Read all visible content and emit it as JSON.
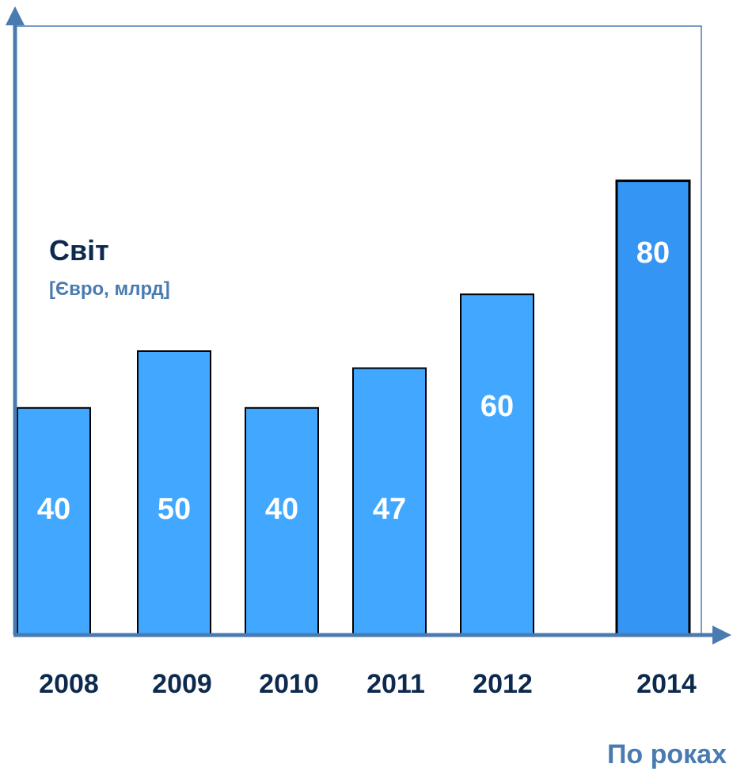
{
  "chart_data": {
    "type": "bar",
    "title": "Світ",
    "subtitle": "[Євро, млрд]",
    "xlabel": "По роках",
    "ylabel": "",
    "categories": [
      "2008",
      "2009",
      "2010",
      "2011",
      "2012",
      "2014"
    ],
    "values": [
      40,
      50,
      40,
      47,
      60,
      80
    ],
    "grid": false,
    "legend": "none",
    "colors": {
      "bar": "#42a8ff",
      "bar_highlight": "#3595f5",
      "bar_outline": "#000000",
      "axis": "#4a7bb0",
      "title": "#0d2a4e",
      "unit": "#4a7bb0"
    }
  }
}
